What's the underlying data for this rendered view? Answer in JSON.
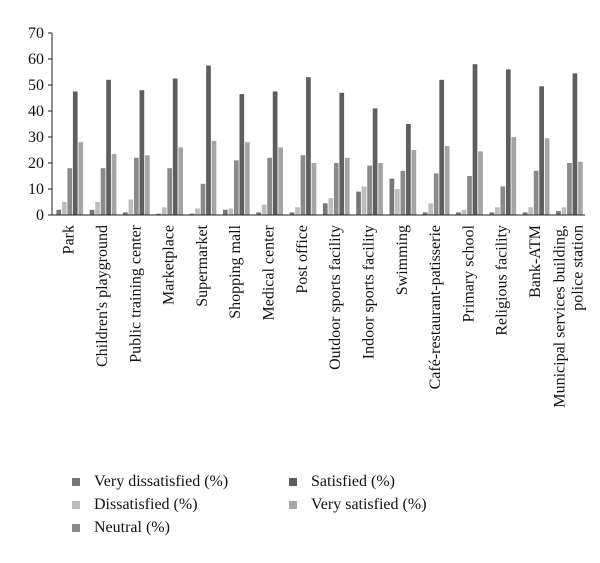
{
  "chart_data": {
    "type": "bar",
    "title": "",
    "xlabel": "",
    "ylabel": "",
    "ylim": [
      0,
      70
    ],
    "yticks": [
      0,
      10,
      20,
      30,
      40,
      50,
      60,
      70
    ],
    "grid": false,
    "legend_position": "bottom",
    "categories": [
      "Park",
      "Children's playground",
      "Public training center",
      "Marketplace",
      "Supermarket",
      "Shopping mall",
      "Medical center",
      "Post office",
      "Outdoor sports facility",
      "Indoor sports facility",
      "Swimming",
      "Café-restaurant-patisserie",
      "Primary school",
      "Religious facility",
      "Bank-ATM",
      "Municipal services building, police station"
    ],
    "series": [
      {
        "name": "Very dissatisfied (%)",
        "color": "#767676",
        "values": [
          2,
          2,
          1,
          0.5,
          0.5,
          2,
          1,
          1,
          4.5,
          9,
          14,
          1,
          1,
          1,
          1,
          1.5
        ]
      },
      {
        "name": "Dissatisfied (%)",
        "color": "#bdbdbd",
        "values": [
          5,
          5,
          6,
          3,
          2.5,
          2.5,
          4,
          3,
          6.5,
          11,
          10,
          4.5,
          2,
          3,
          3,
          3
        ]
      },
      {
        "name": "Neutral (%)",
        "color": "#8a8a8a",
        "values": [
          18,
          18,
          22,
          18,
          12,
          21,
          22,
          23,
          20,
          19,
          17,
          16,
          15,
          11,
          17,
          20
        ]
      },
      {
        "name": "Satisfied (%)",
        "color": "#5e5e5e",
        "values": [
          47.5,
          52,
          48,
          52.5,
          57.5,
          46.5,
          47.5,
          53,
          47,
          41,
          35,
          52,
          58,
          56,
          49.5,
          54.5
        ]
      },
      {
        "name": "Very satisfied (%)",
        "color": "#a5a5a5",
        "values": [
          28,
          23.5,
          23,
          26,
          28.5,
          28,
          26,
          20,
          22,
          20,
          25,
          26.5,
          24.5,
          30,
          29.5,
          20.5
        ]
      }
    ]
  }
}
